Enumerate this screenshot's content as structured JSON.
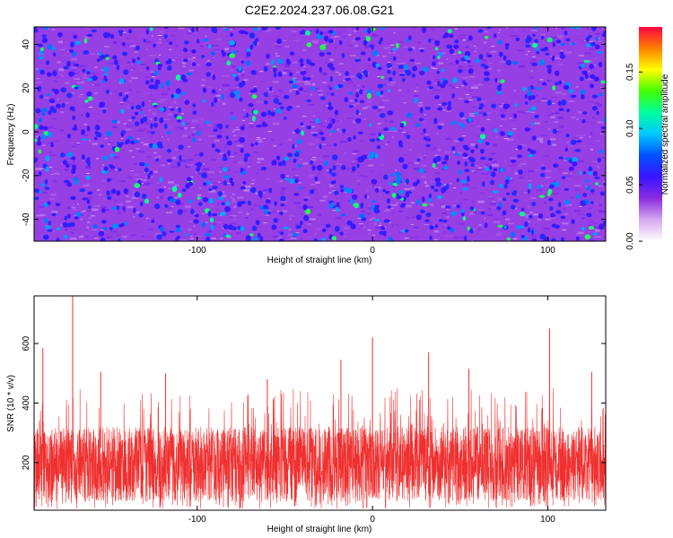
{
  "chart_data": [
    {
      "type": "heatmap",
      "title": "C2E2.2024.237.06.08.G21",
      "xlabel": "Height of straight line (km)",
      "ylabel": "Frequency (Hz)",
      "xlim": [
        -193,
        133
      ],
      "ylim": [
        -50,
        48
      ],
      "xticks": [
        -100,
        0,
        100
      ],
      "yticks": [
        -40,
        -20,
        0,
        20,
        40
      ],
      "colorbar": {
        "label": "Normalized spectral amplitude",
        "range": [
          0,
          0.19
        ],
        "ticks": [
          "0.00",
          "0.05",
          "0.10",
          "0.15"
        ],
        "colors": [
          "#ffffff",
          "#d6a8f0",
          "#8a2be2",
          "#3a14ff",
          "#0050ff",
          "#00c8ff",
          "#00ffa0",
          "#40ff00",
          "#ffff00",
          "#ff8000",
          "#ff0040"
        ]
      },
      "background_level": 0.035,
      "spot_levels": [
        0.06,
        0.085,
        0.12
      ]
    },
    {
      "type": "line",
      "xlabel": "Height of straight line (km)",
      "ylabel": "SNR (10 * v/v)",
      "xlim": [
        -193,
        133
      ],
      "ylim": [
        40,
        760
      ],
      "xticks": [
        -100,
        0,
        100
      ],
      "yticks": [
        200,
        400,
        600
      ],
      "series": [
        {
          "color": "#f03030",
          "typical_range": [
            70,
            320
          ],
          "peaks": [
            {
              "x": -188,
              "y": 585
            },
            {
              "x": -171,
              "y": 760
            },
            {
              "x": -155,
              "y": 505
            },
            {
              "x": -118,
              "y": 500
            },
            {
              "x": -60,
              "y": 480
            },
            {
              "x": -18,
              "y": 545
            },
            {
              "x": 0,
              "y": 620
            },
            {
              "x": 32,
              "y": 570
            },
            {
              "x": 55,
              "y": 515
            },
            {
              "x": 101,
              "y": 650
            },
            {
              "x": 125,
              "y": 505
            }
          ]
        }
      ]
    }
  ]
}
